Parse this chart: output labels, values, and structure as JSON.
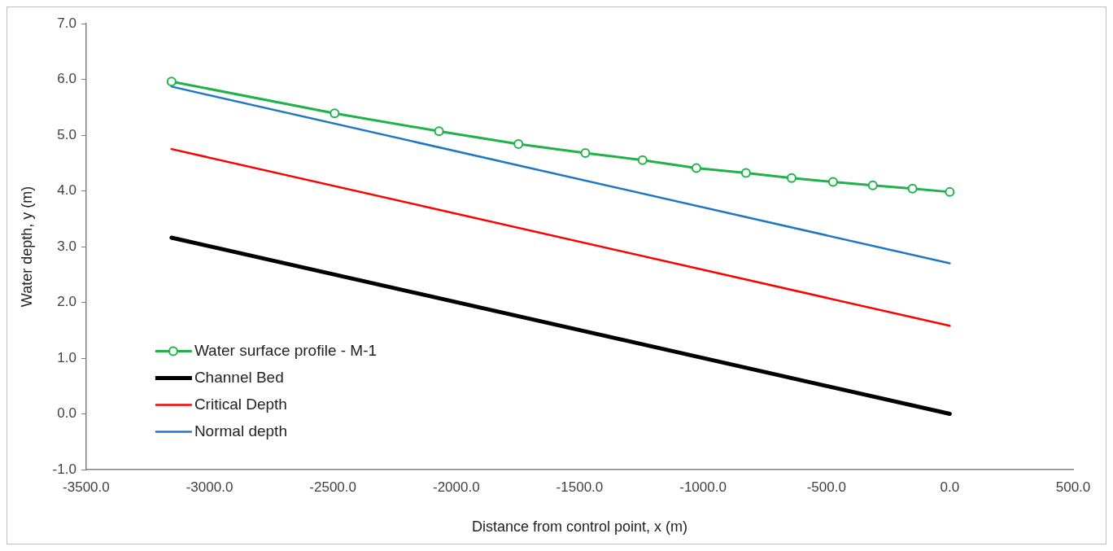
{
  "chart_data": {
    "type": "line",
    "xlabel": "Distance from control point, x (m)",
    "ylabel": "Water depth, y (m)",
    "xlim": [
      -3500,
      500
    ],
    "ylim": [
      -1,
      7
    ],
    "xticks": [
      {
        "value": -3500,
        "label": "-3500.0"
      },
      {
        "value": -3000,
        "label": "-3000.0"
      },
      {
        "value": -2500,
        "label": "-2500.0"
      },
      {
        "value": -2000,
        "label": "-2000.0"
      },
      {
        "value": -1500,
        "label": "-1500.0"
      },
      {
        "value": -1000,
        "label": "-1000.0"
      },
      {
        "value": -500,
        "label": "-500.0"
      },
      {
        "value": 0,
        "label": "0.0"
      },
      {
        "value": 500,
        "label": "500.0"
      }
    ],
    "yticks": [
      {
        "value": -1,
        "label": "-1.0"
      },
      {
        "value": 0,
        "label": "0.0"
      },
      {
        "value": 1,
        "label": "1.0"
      },
      {
        "value": 2,
        "label": "2.0"
      },
      {
        "value": 3,
        "label": "3.0"
      },
      {
        "value": 4,
        "label": "4.0"
      },
      {
        "value": 5,
        "label": "5.0"
      },
      {
        "value": 6,
        "label": "6.0"
      },
      {
        "value": 7,
        "label": "7.0"
      }
    ],
    "grid": false,
    "legend": "bottom left",
    "line_style": "solid",
    "series": [
      {
        "name": "Water surface profile - M-1",
        "color": "#1fb24a",
        "marker": "circle",
        "x": [
          -3154,
          -2493,
          -2070,
          -1748,
          -1477,
          -1245,
          -1027,
          -826,
          -641,
          -473,
          -312,
          -151,
          0
        ],
        "values": [
          5.96,
          5.39,
          5.07,
          4.84,
          4.68,
          4.55,
          4.41,
          4.32,
          4.23,
          4.16,
          4.1,
          4.04,
          3.98
        ]
      },
      {
        "name": "Channel Bed",
        "color": "#000000",
        "marker": "none",
        "x": [
          -3154,
          0
        ],
        "values": [
          3.16,
          0
        ]
      },
      {
        "name": "Critical Depth",
        "color": "#ff0000",
        "marker": "none",
        "x": [
          -3154,
          0
        ],
        "values": [
          4.75,
          1.58
        ]
      },
      {
        "name": "Normal depth",
        "color": "#1f77c4",
        "marker": "none",
        "x": [
          -3154,
          0
        ],
        "values": [
          5.87,
          2.7
        ]
      }
    ]
  }
}
